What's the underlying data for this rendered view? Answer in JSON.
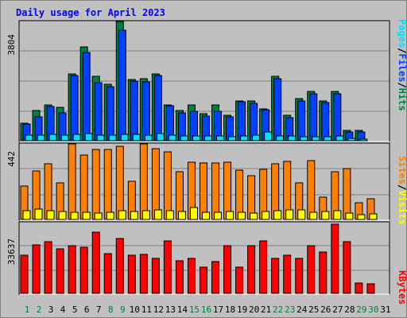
{
  "chart_data": {
    "type": "bar",
    "title": "Daily usage for April 2023",
    "categories": [
      "1",
      "2",
      "3",
      "4",
      "5",
      "6",
      "7",
      "8",
      "9",
      "10",
      "11",
      "12",
      "13",
      "14",
      "15",
      "16",
      "17",
      "18",
      "19",
      "20",
      "21",
      "22",
      "23",
      "24",
      "25",
      "26",
      "27",
      "28",
      "29",
      "30",
      "31"
    ],
    "weekend_days": [
      "1",
      "2",
      "8",
      "9",
      "15",
      "16",
      "22",
      "23",
      "29",
      "30"
    ],
    "panels": [
      {
        "id": "hits",
        "ymax": 3804,
        "ymax_label": "3804",
        "series": [
          {
            "name": "Hits",
            "color": "#008040",
            "values": [
              565,
              960,
              1140,
              1060,
              2140,
              2990,
              2050,
              1790,
              3804,
              1950,
              1980,
              2130,
              1140,
              960,
              1150,
              850,
              1150,
              820,
              1280,
              1260,
              1020,
              2060,
              810,
              1350,
              1560,
              1280,
              1560,
              330,
              330,
              0,
              0
            ]
          },
          {
            "name": "Files",
            "color": "#0040ff",
            "values": [
              520,
              760,
              1090,
              880,
              2070,
              2820,
              1860,
              1720,
              3520,
              1890,
              1880,
              2070,
              1110,
              880,
              930,
              780,
              950,
              770,
              1240,
              1190,
              980,
              1990,
              730,
              1280,
              1500,
              1220,
              1500,
              280,
              290,
              0,
              0
            ]
          },
          {
            "name": "Pages",
            "color": "#00e0ff",
            "values": [
              190,
              190,
              200,
              190,
              210,
              230,
              180,
              180,
              200,
              200,
              180,
              220,
              180,
              150,
              140,
              150,
              150,
              130,
              150,
              180,
              280,
              150,
              140,
              130,
              130,
              130,
              150,
              70,
              60,
              0,
              0
            ]
          }
        ]
      },
      {
        "id": "visits",
        "ymax": 442,
        "ymax_label": "442",
        "series": [
          {
            "name": "Sites",
            "color": "#ff8000",
            "values": [
              194,
              286,
              326,
              212,
              442,
              375,
              409,
              409,
              430,
              224,
              443,
              413,
              394,
              280,
              337,
              331,
              331,
              337,
              289,
              254,
              292,
              325,
              339,
              214,
              345,
              131,
              277,
              300,
              100,
              120,
              0
            ]
          },
          {
            "name": "Visits",
            "color": "#ffff00",
            "values": [
              52,
              60,
              50,
              45,
              42,
              40,
              38,
              40,
              52,
              48,
              50,
              58,
              50,
              45,
              68,
              42,
              40,
              45,
              42,
              38,
              48,
              50,
              58,
              58,
              40,
              45,
              50,
              38,
              30,
              32,
              0
            ]
          }
        ]
      },
      {
        "id": "kbytes",
        "ymax": 33637,
        "ymax_label": "33637",
        "series": [
          {
            "name": "KBytes",
            "color": "#ff0000",
            "values": [
              18300,
              22880,
              24680,
              21040,
              22580,
              21830,
              28990,
              18960,
              26090,
              18240,
              18580,
              16450,
              24890,
              15540,
              16600,
              12360,
              15160,
              22800,
              12520,
              22830,
              25070,
              16450,
              18040,
              16450,
              22580,
              19780,
              32900,
              24390,
              5100,
              4690,
              0
            ]
          }
        ]
      }
    ],
    "legends": {
      "hits": [
        {
          "text": "Pages",
          "color": "#00e0ff"
        },
        {
          "text": "/",
          "color": "#000000"
        },
        {
          "text": "Files",
          "color": "#0040ff"
        },
        {
          "text": "/",
          "color": "#000000"
        },
        {
          "text": "Hits",
          "color": "#008040"
        }
      ],
      "visits": [
        {
          "text": "Sites",
          "color": "#ff8000"
        },
        {
          "text": "/",
          "color": "#000000"
        },
        {
          "text": "Visits",
          "color": "#ffff00"
        }
      ],
      "kbytes": [
        {
          "text": "KBytes",
          "color": "#ff0000"
        }
      ]
    },
    "grid": true
  }
}
